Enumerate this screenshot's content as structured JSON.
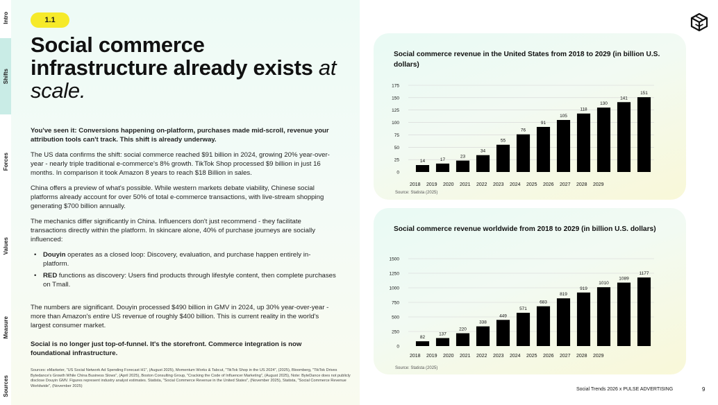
{
  "sidebar": {
    "items": [
      {
        "label": "Intro"
      },
      {
        "label": "Shifts"
      },
      {
        "label": "Forces"
      },
      {
        "label": "Values"
      },
      {
        "label": "Measure"
      },
      {
        "label": "Sources"
      }
    ],
    "active_index": 1,
    "active_color": "#c9ece6"
  },
  "section_badge": "1.1",
  "headline": {
    "bold": "Social commerce infrastructure already exists",
    "light": "at scale."
  },
  "body": {
    "lead": "You've seen it: Conversions happening on-platform, purchases made mid-scroll, revenue your attribution tools can't track. This shift is already underway.",
    "p1": "The US data confirms the shift: social commerce reached $91 billion in 2024, growing 20% year-over-year - nearly triple traditional e-commerce's 8% growth. TikTok Shop processed $9 billion in just 16 months. In comparison it took Amazon 8 years to reach $18 Billion in sales.",
    "p2": "China offers a preview of what's possible. While western markets debate viability, Chinese social platforms already account for over 50% of total e-commerce transactions, with live-stream shopping generating $700 billion annually.",
    "p3": "The mechanics differ significantly in China. Influencers don't just recommend - they facilitate transactions directly within the platform. In skincare alone, 40% of purchase journeys are socially influenced:",
    "bullets": [
      {
        "term": "Douyin",
        "text": " operates as a closed loop: Discovery, evaluation, and purchase happen entirely in-platform."
      },
      {
        "term": "RED",
        "text": " functions as discovery: Users find products through lifestyle content, then complete purchases on Tmall."
      }
    ],
    "p4_a": "The numbers are significant. Douyin processed $490 billion in GMV in 2024, up 30% year-over-year - more than Amazon's ",
    "p4_em": "entire",
    "p4_b": " US revenue of roughly $400 billion. This is current reality in the world's largest consumer market.",
    "closing": "Social is no longer just top-of-funnel. It's the storefront. Commerce integration is now foundational infrastructure."
  },
  "footnote": "Sources: eMarketer, \"US Social Network Ad Spending Forecast H1\", (August 2025), Momentum Works & Tabcut, \"TikTok Shop in the US 2024\", (2025), Bloomberg, \"TikTok Drives Bytedance's Growth While China Business Slows\", (April 2025), Boston Consulting Group, \"Cracking the Code of Influencer Marketing\", (August 2025), Note: ByteDance does not publicly disclose Douyin GMV. Figures represent industry analyst estimates. Statista, \"Social Commerce Revenue in the United States\", (November 2025), Statista, \"Social Commerce Revenue Worldwide\", (November 2025)",
  "footer": {
    "label": "Social Trends 2026 x PULSE ADVERTISING",
    "page": "9"
  },
  "logo_icon": "cube-icon",
  "chart_data": [
    {
      "type": "bar",
      "title": "Social commerce revenue in the United States from 2018 to 2029 (in billion U.S. dollars)",
      "categories": [
        "2018",
        "2019",
        "2020",
        "2021",
        "2022",
        "2023",
        "2024",
        "2025",
        "2026",
        "2027",
        "2028",
        "2029"
      ],
      "values": [
        14,
        17,
        23,
        34,
        55,
        76,
        91,
        105,
        118,
        130,
        141,
        151
      ],
      "yticks": [
        0,
        25,
        50,
        75,
        100,
        125,
        150,
        175
      ],
      "ylim": [
        0,
        175
      ],
      "grid": true,
      "bar_color": "#000000",
      "source": "Source: Statista (2025)"
    },
    {
      "type": "bar",
      "title": "Social commerce revenue worldwide from 2018 to 2029 (in billion U.S. dollars)",
      "categories": [
        "2018",
        "2019",
        "2020",
        "2021",
        "2022",
        "2023",
        "2024",
        "2025",
        "2026",
        "2027",
        "2028",
        "2029"
      ],
      "values": [
        82,
        137,
        220,
        338,
        449,
        571,
        683,
        819,
        919,
        1010,
        1089,
        1177
      ],
      "yticks": [
        0,
        250,
        500,
        750,
        1000,
        1250,
        1500
      ],
      "ylim": [
        0,
        1500
      ],
      "grid": true,
      "bar_color": "#000000",
      "source": "Source: Statista (2025)"
    }
  ]
}
